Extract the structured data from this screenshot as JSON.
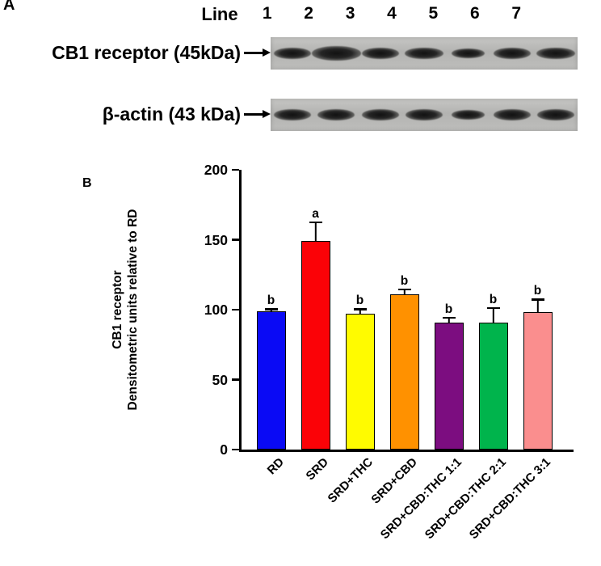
{
  "panels": {
    "a_label": "A",
    "b_label": "B"
  },
  "blot": {
    "header_label": "Line",
    "lane_numbers": [
      "1",
      "2",
      "3",
      "4",
      "5",
      "6",
      "7"
    ],
    "rows": [
      {
        "label": "CB1 receptor (45kDa)",
        "band_intensities": [
          1.0,
          1.32,
          1.0,
          1.05,
          0.9,
          1.0,
          1.05
        ]
      },
      {
        "label": "β-actin (43 kDa)",
        "band_intensities": [
          1.0,
          1.0,
          1.0,
          1.0,
          0.88,
          1.0,
          1.0
        ]
      }
    ]
  },
  "chart_data": {
    "type": "bar",
    "title": "",
    "categories": [
      "RD",
      "SRD",
      "SRD+THC",
      "SRD+CBD",
      "SRD+CBD:THC 1:1",
      "SRD+CBD:THC 2:1",
      "SRD+CBD:THC 3:1"
    ],
    "values": [
      99,
      149,
      97,
      111,
      91,
      91,
      98
    ],
    "errors": [
      2,
      14,
      4,
      4,
      4,
      11,
      10
    ],
    "significance_letters": [
      "b",
      "a",
      "b",
      "b",
      "b",
      "b",
      "b"
    ],
    "bar_colors": [
      "#0a0af5",
      "#fb0207",
      "#fffb00",
      "#ff9100",
      "#7c0d80",
      "#00b44c",
      "#fa8e8e"
    ],
    "ylabel_line1": "CB1 receptor",
    "ylabel_line2": "Densitometric units relative to RD",
    "xlabel": "",
    "ylim": [
      0,
      200
    ],
    "yticks": [
      0,
      50,
      100,
      150,
      200
    ],
    "grid": false,
    "legend": "none"
  }
}
